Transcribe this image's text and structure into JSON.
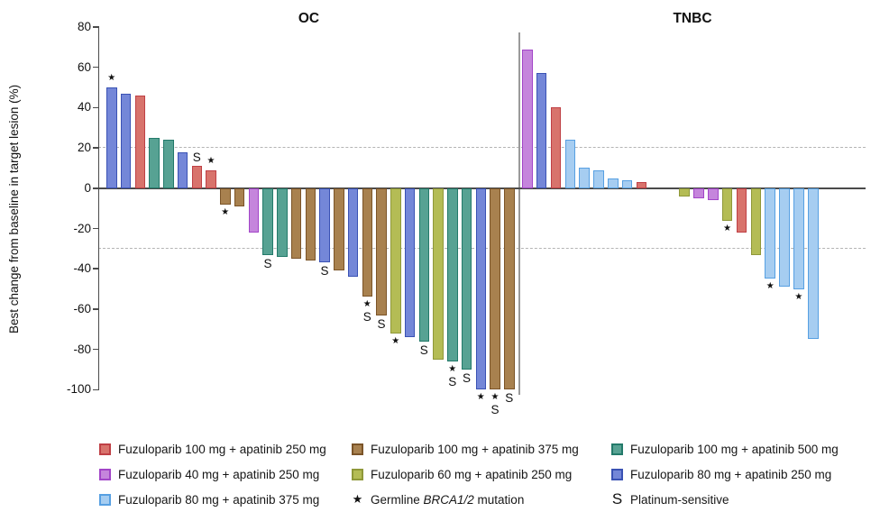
{
  "chart_data": {
    "type": "bar",
    "subtype": "waterfall",
    "ylabel": "Best change from baseline in target lesion (%)",
    "ylim": [
      -100,
      80
    ],
    "yticks": [
      80,
      60,
      40,
      20,
      0,
      -20,
      -40,
      -60,
      -80,
      -100
    ],
    "reference_lines": [
      20,
      -30
    ],
    "grid": "off",
    "legend_position": "bottom",
    "title_left": "OC",
    "title_right": "TNBC",
    "marker_meaning": {
      "star": "Germline BRCA1/2 mutation",
      "S": "Platinum-sensitive"
    },
    "dose_colors": {
      "fuzu100_apa250": {
        "label": "Fuzuloparib 100 mg + apatinib 250 mg",
        "fill": "#d8736c",
        "border": "#bf4045"
      },
      "fuzu100_apa375": {
        "label": "Fuzuloparib 100 mg + apatinib 375 mg",
        "fill": "#a8814f",
        "border": "#7b5428"
      },
      "fuzu100_apa500": {
        "label": "Fuzuloparib 100 mg + apatinib 500 mg",
        "fill": "#57a293",
        "border": "#237a6a"
      },
      "fuzu40_apa250": {
        "label": "Fuzuloparib 40 mg + apatinib 250 mg",
        "fill": "#c585dc",
        "border": "#a245c8"
      },
      "fuzu60_apa250": {
        "label": "Fuzuloparib 60 mg + apatinib 250 mg",
        "fill": "#b4bc55",
        "border": "#8f9839"
      },
      "fuzu80_apa250": {
        "label": "Fuzuloparib 80 mg + apatinib 250 mg",
        "fill": "#7487d8",
        "border": "#3a52b4"
      },
      "fuzu80_apa375": {
        "label": "Fuzuloparib 80 mg + apatinib 375 mg",
        "fill": "#a6cdf1",
        "border": "#57a0e2"
      }
    },
    "panels": [
      {
        "name": "OC",
        "bars": [
          {
            "value": 50,
            "color": "fuzu80_apa250",
            "markers": "*"
          },
          {
            "value": 47,
            "color": "fuzu80_apa250",
            "markers": ""
          },
          {
            "value": 46,
            "color": "fuzu100_apa250",
            "markers": ""
          },
          {
            "value": 25,
            "color": "fuzu100_apa500",
            "markers": ""
          },
          {
            "value": 24,
            "color": "fuzu100_apa500",
            "markers": ""
          },
          {
            "value": 18,
            "color": "fuzu80_apa250",
            "markers": ""
          },
          {
            "value": 11,
            "color": "fuzu100_apa250",
            "markers": "S"
          },
          {
            "value": 9,
            "color": "fuzu100_apa250",
            "markers": "*"
          },
          {
            "value": -8,
            "color": "fuzu100_apa375",
            "markers": "*"
          },
          {
            "value": -9,
            "color": "fuzu100_apa375",
            "markers": ""
          },
          {
            "value": -22,
            "color": "fuzu40_apa250",
            "markers": ""
          },
          {
            "value": -33,
            "color": "fuzu100_apa500",
            "markers": "S"
          },
          {
            "value": -34,
            "color": "fuzu100_apa500",
            "markers": ""
          },
          {
            "value": -35,
            "color": "fuzu100_apa375",
            "markers": ""
          },
          {
            "value": -36,
            "color": "fuzu100_apa375",
            "markers": ""
          },
          {
            "value": -37,
            "color": "fuzu80_apa250",
            "markers": "S"
          },
          {
            "value": -41,
            "color": "fuzu100_apa375",
            "markers": ""
          },
          {
            "value": -44,
            "color": "fuzu80_apa250",
            "markers": ""
          },
          {
            "value": -54,
            "color": "fuzu100_apa375",
            "markers": "*S"
          },
          {
            "value": -63,
            "color": "fuzu100_apa375",
            "markers": "S"
          },
          {
            "value": -72,
            "color": "fuzu60_apa250",
            "markers": "*"
          },
          {
            "value": -74,
            "color": "fuzu80_apa250",
            "markers": ""
          },
          {
            "value": -76,
            "color": "fuzu100_apa500",
            "markers": "S"
          },
          {
            "value": -85,
            "color": "fuzu60_apa250",
            "markers": ""
          },
          {
            "value": -86,
            "color": "fuzu100_apa500",
            "markers": "*S"
          },
          {
            "value": -90,
            "color": "fuzu100_apa500",
            "markers": "S"
          },
          {
            "value": -100,
            "color": "fuzu80_apa250",
            "markers": "*"
          },
          {
            "value": -100,
            "color": "fuzu100_apa375",
            "markers": "*S"
          },
          {
            "value": -100,
            "color": "fuzu100_apa375",
            "markers": "S"
          }
        ]
      },
      {
        "name": "TNBC",
        "bars": [
          {
            "value": 69,
            "color": "fuzu40_apa250",
            "markers": ""
          },
          {
            "value": 57,
            "color": "fuzu80_apa250",
            "markers": ""
          },
          {
            "value": 40,
            "color": "fuzu100_apa250",
            "markers": ""
          },
          {
            "value": 24,
            "color": "fuzu80_apa375",
            "markers": ""
          },
          {
            "value": 10,
            "color": "fuzu80_apa375",
            "markers": ""
          },
          {
            "value": 9,
            "color": "fuzu80_apa375",
            "markers": ""
          },
          {
            "value": 5,
            "color": "fuzu80_apa375",
            "markers": ""
          },
          {
            "value": 4,
            "color": "fuzu80_apa375",
            "markers": ""
          },
          {
            "value": 3,
            "color": "fuzu100_apa250",
            "markers": ""
          },
          {
            "value": 0,
            "color": "none",
            "markers": ""
          },
          {
            "value": 0,
            "color": "none",
            "markers": ""
          },
          {
            "value": -4,
            "color": "fuzu60_apa250",
            "markers": ""
          },
          {
            "value": -5,
            "color": "fuzu40_apa250",
            "markers": ""
          },
          {
            "value": -6,
            "color": "fuzu40_apa250",
            "markers": ""
          },
          {
            "value": -16,
            "color": "fuzu60_apa250",
            "markers": "*"
          },
          {
            "value": -22,
            "color": "fuzu100_apa250",
            "markers": ""
          },
          {
            "value": -33,
            "color": "fuzu60_apa250",
            "markers": ""
          },
          {
            "value": -45,
            "color": "fuzu80_apa375",
            "markers": "*"
          },
          {
            "value": -49,
            "color": "fuzu80_apa375",
            "markers": ""
          },
          {
            "value": -50,
            "color": "fuzu80_apa375",
            "markers": "*"
          },
          {
            "value": -75,
            "color": "fuzu80_apa375",
            "markers": ""
          }
        ]
      }
    ],
    "legend": {
      "columns": [
        {
          "items": [
            {
              "type": "color",
              "key": "fuzu100_apa250"
            },
            {
              "type": "color",
              "key": "fuzu40_apa250"
            },
            {
              "type": "color",
              "key": "fuzu80_apa375"
            }
          ]
        },
        {
          "items": [
            {
              "type": "color",
              "key": "fuzu100_apa375"
            },
            {
              "type": "color",
              "key": "fuzu60_apa250"
            },
            {
              "type": "marker",
              "symbol": "*",
              "text_before": "Germline ",
              "text_italic": "BRCA1/2",
              "text_after": " mutation"
            }
          ]
        },
        {
          "items": [
            {
              "type": "color",
              "key": "fuzu100_apa500"
            },
            {
              "type": "color",
              "key": "fuzu80_apa250"
            },
            {
              "type": "marker",
              "symbol": "S",
              "text_before": "Platinum-sensitive",
              "text_italic": "",
              "text_after": ""
            }
          ]
        }
      ]
    }
  }
}
